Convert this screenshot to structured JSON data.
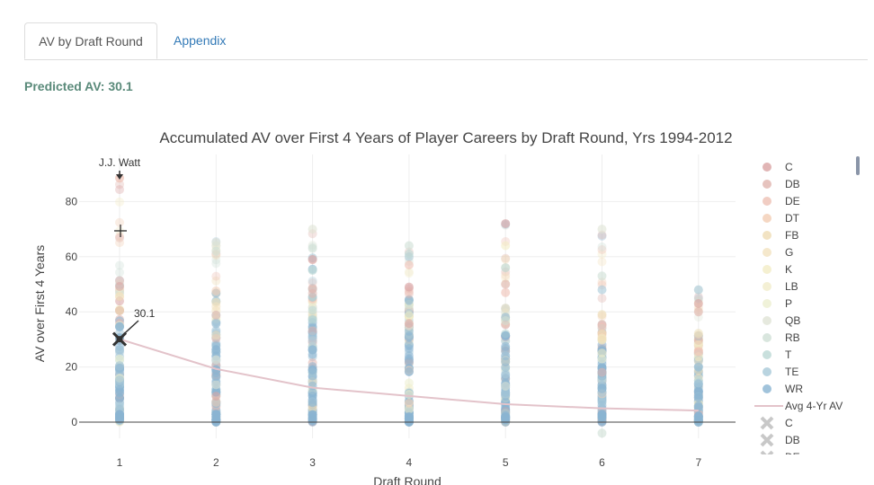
{
  "tabs": [
    {
      "label": "AV by Draft Round",
      "active": true
    },
    {
      "label": "Appendix",
      "active": false
    }
  ],
  "prediction": {
    "label": "Predicted AV: 30.1",
    "value": 30.1,
    "round": 1
  },
  "colors": {
    "avg_line": "#e3c3ca",
    "axis": "#444444",
    "grid": "#eeeeee",
    "tab_link": "#337ab7",
    "prediction_text": "#5a8a7a"
  },
  "chart_data": {
    "type": "scatter",
    "title": "Accumulated AV over First 4 Years of Player Careers by Draft Round, Yrs 1994-2012",
    "xlabel": "Draft Round",
    "ylabel": "AV over First 4 Years",
    "xlim": [
      0.6,
      7.4
    ],
    "ylim": [
      -5,
      92
    ],
    "x_ticks": [
      "1",
      "2",
      "3",
      "4",
      "5",
      "6",
      "7"
    ],
    "y_ticks": [
      "0",
      "20",
      "40",
      "60",
      "80"
    ],
    "grid": true,
    "legend_placement": "right",
    "positions": [
      {
        "name": "C",
        "color": "#d9a3a3"
      },
      {
        "name": "DB",
        "color": "#e0b4ae"
      },
      {
        "name": "DE",
        "color": "#eec0b4"
      },
      {
        "name": "DT",
        "color": "#f2cdb4"
      },
      {
        "name": "FB",
        "color": "#efdcb4"
      },
      {
        "name": "G",
        "color": "#f3e2bf"
      },
      {
        "name": "K",
        "color": "#f3ecc6"
      },
      {
        "name": "LB",
        "color": "#f1eccb"
      },
      {
        "name": "P",
        "color": "#ecefcf"
      },
      {
        "name": "QB",
        "color": "#e0e4d6"
      },
      {
        "name": "RB",
        "color": "#cfe0d6"
      },
      {
        "name": "T",
        "color": "#bcd8d4"
      },
      {
        "name": "TE",
        "color": "#a8c9d8"
      },
      {
        "name": "WR",
        "color": "#8ab4d2"
      }
    ],
    "highlight_legend": [
      "C",
      "DB",
      "DE"
    ],
    "avg_series": {
      "name": "Avg 4-Yr AV",
      "x": [
        1,
        2,
        3,
        4,
        5,
        6,
        7
      ],
      "y": [
        30.1,
        19.3,
        12.5,
        9.5,
        6.5,
        5.0,
        4.2
      ]
    },
    "round_max": [
      90,
      66,
      70,
      64,
      72,
      70,
      48
    ],
    "dense_top": [
      52,
      49,
      50,
      45,
      42,
      36,
      32
    ],
    "outliers": [
      [
        2,
        64,
        "QB"
      ],
      [
        2,
        62,
        "RB"
      ],
      [
        3,
        70,
        "QB"
      ],
      [
        3,
        63,
        "RB"
      ],
      [
        3,
        59,
        "C"
      ],
      [
        3,
        55,
        "T"
      ],
      [
        4,
        64,
        "RB"
      ],
      [
        4,
        61,
        "T"
      ],
      [
        4,
        57,
        "DE"
      ],
      [
        4,
        49,
        "C"
      ],
      [
        5,
        72,
        "C"
      ],
      [
        5,
        64,
        "K"
      ],
      [
        5,
        56,
        "T"
      ],
      [
        5,
        50,
        "DB"
      ],
      [
        5,
        47,
        "DE"
      ],
      [
        6,
        70,
        "QB"
      ],
      [
        6,
        53,
        "RB"
      ],
      [
        6,
        48,
        "TE"
      ],
      [
        6,
        39,
        "FB"
      ],
      [
        7,
        48,
        "TE"
      ],
      [
        7,
        43,
        "C"
      ],
      [
        7,
        40,
        "DB"
      ],
      [
        6,
        -4,
        "RB"
      ]
    ],
    "annotations": [
      {
        "text": "J.J. Watt",
        "x": 1,
        "y": 89
      },
      {
        "text": "30.1",
        "x": 1,
        "y": 30.1
      }
    ]
  }
}
